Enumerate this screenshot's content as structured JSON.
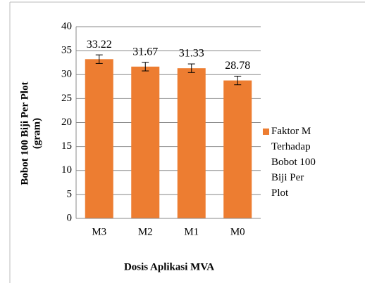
{
  "chart_data": {
    "type": "bar",
    "xlabel": "Dosis Aplikasi MVA",
    "ylabel": "Bobot 100  Biji Per Plot (gram)",
    "categories": [
      "M3",
      "M2",
      "M1",
      "M0"
    ],
    "series": [
      {
        "name": "Faktor M Terhadap Bobot 100 Biji Per Plot",
        "color": "#ED7D31",
        "values": [
          33.22,
          31.67,
          31.33,
          28.78
        ],
        "errors": [
          0.9,
          0.9,
          0.9,
          0.9
        ]
      }
    ],
    "ylim": [
      0,
      40
    ],
    "yticks": [
      0,
      5,
      10,
      15,
      20,
      25,
      30,
      35,
      40
    ],
    "grid": true,
    "legend": "right"
  }
}
